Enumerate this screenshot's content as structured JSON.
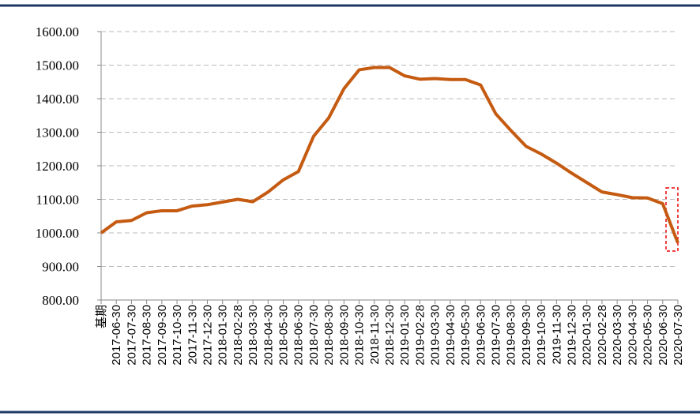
{
  "chart_data": {
    "type": "line",
    "categories": [
      "基期",
      "2017-06-30",
      "2017-07-30",
      "2017-08-30",
      "2017-09-30",
      "2017-10-30",
      "2017-11-30",
      "2017-12-30",
      "2018-01-30",
      "2018-02-28",
      "2018-03-30",
      "2018-04-30",
      "2018-05-30",
      "2018-06-30",
      "2018-07-30",
      "2018-08-30",
      "2018-09-30",
      "2018-10-30",
      "2018-11-30",
      "2018-12-30",
      "2019-01-30",
      "2019-02-28",
      "2019-03-30",
      "2019-04-30",
      "2019-05-30",
      "2019-06-30",
      "2019-07-30",
      "2019-08-30",
      "2019-09-30",
      "2019-10-30",
      "2019-11-30",
      "2019-12-30",
      "2020-01-30",
      "2020-02-28",
      "2020-03-30",
      "2020-04-30",
      "2020-05-30",
      "2020-06-30",
      "2020-07-30"
    ],
    "values": [
      1000,
      1033,
      1037,
      1060,
      1066,
      1066,
      1080,
      1084,
      1092,
      1100,
      1093,
      1122,
      1158,
      1183,
      1288,
      1343,
      1430,
      1486,
      1493,
      1493,
      1468,
      1458,
      1460,
      1457,
      1457,
      1441,
      1355,
      1305,
      1258,
      1235,
      1208,
      1178,
      1150,
      1122,
      1114,
      1105,
      1104,
      1087,
      970
    ],
    "color": "#c55a11",
    "ylim": [
      800,
      1600
    ],
    "yticks": [
      {
        "value": 800,
        "label": "800.00"
      },
      {
        "value": 900,
        "label": "900.00"
      },
      {
        "value": 1000,
        "label": "1000.00"
      },
      {
        "value": 1100,
        "label": "1100.00"
      },
      {
        "value": 1200,
        "label": "1200.00"
      },
      {
        "value": 1300,
        "label": "1300.00"
      },
      {
        "value": 1400,
        "label": "1400.00"
      },
      {
        "value": 1500,
        "label": "1500.00"
      },
      {
        "value": 1600,
        "label": "1600.00"
      }
    ],
    "grid": true
  }
}
